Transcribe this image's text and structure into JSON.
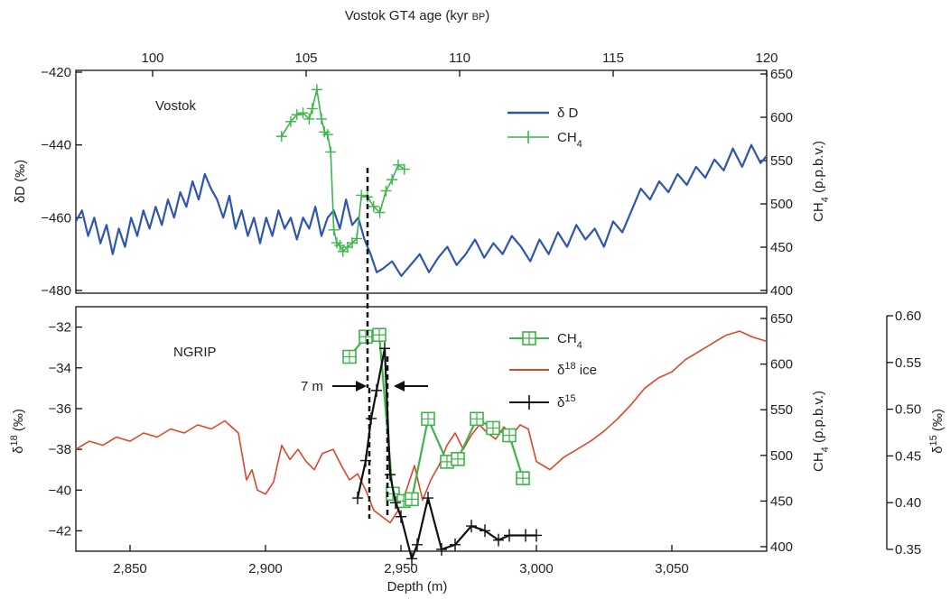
{
  "chart_data": [
    {
      "type": "line",
      "panel": "Vostok",
      "panel_label": "Vostok",
      "top_axis": {
        "label": "Vostok GT4 age (kyr BP)",
        "range": [
          97.5,
          120
        ],
        "ticks": [
          "100",
          "105",
          "110",
          "115",
          "120"
        ]
      },
      "y_left": {
        "label": "δD (‰)",
        "range": [
          -420,
          -480
        ],
        "ticks": [
          "−420",
          "−440",
          "−460",
          "−480"
        ]
      },
      "y_right": {
        "label": "CH4 (p.p.b.v.)",
        "range": [
          400,
          650
        ],
        "ticks": [
          "400",
          "450",
          "500",
          "550",
          "600",
          "650"
        ]
      },
      "legend_position": "top-right",
      "series": [
        {
          "name": "δ D",
          "axis": "left",
          "color": "#2e55b0",
          "x": [
            97.5,
            97.7,
            97.9,
            98.1,
            98.3,
            98.5,
            98.7,
            98.9,
            99.1,
            99.3,
            99.5,
            99.7,
            99.9,
            100.1,
            100.3,
            100.5,
            100.7,
            100.9,
            101.1,
            101.3,
            101.5,
            101.7,
            101.9,
            102.1,
            102.3,
            102.5,
            102.7,
            102.9,
            103.1,
            103.3,
            103.5,
            103.7,
            103.9,
            104.1,
            104.3,
            104.5,
            104.7,
            104.9,
            105.1,
            105.3,
            105.5,
            105.7,
            105.9,
            106.1,
            106.3,
            106.5,
            106.7,
            106.9,
            107.1,
            107.3,
            107.5,
            107.8,
            108.1,
            108.4,
            108.7,
            109,
            109.3,
            109.6,
            109.9,
            110.2,
            110.5,
            110.8,
            111.1,
            111.4,
            111.7,
            112,
            112.3,
            112.6,
            112.9,
            113.2,
            113.5,
            113.8,
            114.1,
            114.4,
            114.7,
            115,
            115.3,
            115.6,
            115.9,
            116.2,
            116.5,
            116.8,
            117.1,
            117.4,
            117.7,
            118,
            118.3,
            118.6,
            118.9,
            119.2,
            119.5,
            119.8,
            120
          ],
          "y": [
            -461,
            -458,
            -465,
            -460,
            -467,
            -462,
            -470,
            -463,
            -468,
            -460,
            -465,
            -458,
            -463,
            -457,
            -462,
            -455,
            -460,
            -453,
            -457,
            -450,
            -455,
            -448,
            -452,
            -455,
            -460,
            -454,
            -463,
            -458,
            -465,
            -460,
            -467,
            -460,
            -465,
            -458,
            -463,
            -460,
            -466,
            -460,
            -463,
            -457,
            -465,
            -460,
            -458,
            -463,
            -455,
            -462,
            -460,
            -466,
            -470,
            -475,
            -474,
            -472,
            -476,
            -473,
            -470,
            -475,
            -471,
            -468,
            -473,
            -470,
            -466,
            -471,
            -467,
            -470,
            -465,
            -468,
            -472,
            -466,
            -470,
            -464,
            -468,
            -462,
            -466,
            -463,
            -468,
            -461,
            -464,
            -458,
            -452,
            -455,
            -450,
            -453,
            -448,
            -451,
            -446,
            -449,
            -444,
            -447,
            -441,
            -446,
            -440,
            -445,
            -443
          ]
        },
        {
          "name": "CH4",
          "axis": "right",
          "color": "#3cb54a",
          "marker": "plus",
          "x": [
            104.2,
            104.5,
            104.7,
            104.9,
            105.1,
            105.2,
            105.35,
            105.5,
            105.6,
            105.7,
            105.8,
            105.9,
            106.0,
            106.1,
            106.2,
            106.35,
            106.5,
            106.65,
            106.8,
            107.0,
            107.2,
            107.4,
            107.6,
            107.8,
            108.0,
            108.2
          ],
          "y": [
            578,
            595,
            603,
            605,
            598,
            610,
            632,
            598,
            583,
            580,
            560,
            470,
            455,
            452,
            445,
            450,
            455,
            460,
            510,
            508,
            497,
            490,
            515,
            528,
            545,
            540
          ]
        }
      ]
    },
    {
      "type": "line",
      "panel": "NGRIP",
      "panel_label": "NGRIP",
      "x_axis": {
        "label": "Depth (m)",
        "range": [
          2830,
          3085
        ],
        "ticks": [
          "2,850",
          "2,900",
          "2,950",
          "3,000",
          "3,050"
        ]
      },
      "y_left": {
        "label": "δ18O (‰)",
        "range": [
          -31,
          -43
        ],
        "ticks": [
          "−32",
          "−34",
          "−36",
          "−38",
          "−40",
          "−42"
        ]
      },
      "y_right": {
        "label": "CH4 (p.p.b.v.)",
        "range": [
          400,
          650
        ],
        "ticks": [
          "400",
          "450",
          "500",
          "550",
          "600",
          "650"
        ]
      },
      "y_far_right": {
        "label": "δ15N (‰)",
        "range": [
          0.35,
          0.6
        ],
        "ticks": [
          "0.35",
          "0.40",
          "0.45",
          "0.50",
          "0.55",
          "0.60"
        ]
      },
      "annotation": {
        "text": "7 m",
        "gap_depth_m": [
          2938,
          2945
        ]
      },
      "legend_position": "top-right",
      "series": [
        {
          "name": "CH4",
          "axis": "right",
          "color": "#3cb54a",
          "marker": "square",
          "x": [
            2931,
            2937,
            2942,
            2947,
            2951,
            2954,
            2960,
            2967,
            2971,
            2978,
            2984,
            2990,
            2995
          ],
          "y": [
            608,
            630,
            632,
            458,
            450,
            452,
            540,
            493,
            496,
            540,
            530,
            522,
            475
          ]
        },
        {
          "name": "δ18O ice",
          "axis": "left",
          "color": "#e0452b",
          "x": [
            2830,
            2835,
            2840,
            2845,
            2850,
            2855,
            2860,
            2865,
            2870,
            2875,
            2880,
            2885,
            2890,
            2893,
            2895,
            2897,
            2900,
            2903,
            2906,
            2909,
            2912,
            2915,
            2918,
            2921,
            2925,
            2928,
            2931,
            2934,
            2937,
            2940,
            2943,
            2946,
            2949,
            2952,
            2955,
            2958,
            2961,
            2964,
            2967,
            2970,
            2973,
            2976,
            2979,
            2982,
            2985,
            2988,
            2991,
            2994,
            2997,
            3000,
            3005,
            3010,
            3015,
            3020,
            3025,
            3030,
            3035,
            3040,
            3045,
            3050,
            3055,
            3060,
            3065,
            3070,
            3075,
            3080,
            3085
          ],
          "y": [
            -38.0,
            -37.6,
            -37.8,
            -37.4,
            -37.6,
            -37.2,
            -37.4,
            -37.0,
            -37.2,
            -36.8,
            -37.0,
            -36.6,
            -37.2,
            -39.5,
            -39.0,
            -40.0,
            -40.2,
            -39.6,
            -37.8,
            -38.5,
            -38.0,
            -38.6,
            -39.0,
            -38.2,
            -38.0,
            -38.8,
            -39.5,
            -39.2,
            -40.0,
            -41.0,
            -41.3,
            -41.6,
            -41.0,
            -40.0,
            -38.8,
            -40.5,
            -39.5,
            -38.8,
            -37.8,
            -37.2,
            -38.0,
            -37.3,
            -36.8,
            -37.2,
            -37.5,
            -36.9,
            -37.3,
            -36.8,
            -37.0,
            -38.6,
            -39.0,
            -38.4,
            -38.0,
            -37.6,
            -37.1,
            -36.5,
            -35.8,
            -35.0,
            -34.5,
            -34.2,
            -33.6,
            -33.2,
            -32.8,
            -32.4,
            -32.2,
            -32.5,
            -32.7
          ]
        },
        {
          "name": "δ15N",
          "axis": "far_right",
          "color": "#111111",
          "marker": "plus",
          "x": [
            2934,
            2937,
            2939,
            2941,
            2944,
            2946,
            2948,
            2950,
            2954,
            2956,
            2960,
            2965,
            2970,
            2976,
            2981,
            2986,
            2990,
            2996,
            3000
          ],
          "y": [
            0.405,
            0.445,
            0.49,
            0.52,
            0.565,
            0.43,
            0.4,
            0.385,
            0.34,
            0.355,
            0.405,
            0.35,
            0.355,
            0.375,
            0.37,
            0.36,
            0.365,
            0.365,
            0.365
          ]
        }
      ]
    }
  ]
}
